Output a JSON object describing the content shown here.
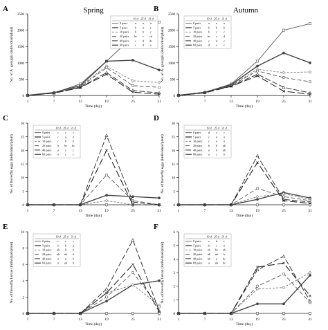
{
  "figure": {
    "column_titles": [
      "Spring",
      "Autumn"
    ]
  },
  "chart_data": [
    {
      "panel": "A",
      "type": "line",
      "season": "Spring",
      "ylabel": "No. of A. gossypii (individual/plant)",
      "xlabel": "Time (day)",
      "x": [
        1,
        7,
        13,
        19,
        25,
        31
      ],
      "ylim": [
        0,
        2500
      ],
      "yticks": [
        0,
        500,
        1000,
        1500,
        2000,
        2500
      ],
      "series": [
        {
          "name": "0 pairs",
          "values": [
            5,
            80,
            350,
            1050,
            1800,
            2250
          ]
        },
        {
          "name": "5 pairs",
          "values": [
            5,
            90,
            300,
            1050,
            1080,
            780
          ]
        },
        {
          "name": "10 pairs",
          "values": [
            5,
            85,
            280,
            900,
            450,
            400
          ]
        },
        {
          "name": "20 pairs",
          "values": [
            5,
            80,
            260,
            850,
            300,
            250
          ]
        },
        {
          "name": "40 pairs",
          "values": [
            5,
            75,
            250,
            700,
            150,
            80
          ]
        },
        {
          "name": "60 pairs",
          "values": [
            5,
            70,
            240,
            650,
            100,
            40
          ]
        }
      ],
      "letter_table": {
        "headers": [
          "19 d",
          "25 d",
          "31 d"
        ],
        "rows": [
          [
            "0 pairs",
            "a",
            "a",
            "a"
          ],
          [
            "5 pairs",
            "b",
            "a",
            "c"
          ],
          [
            "10 pairs",
            "b",
            "b",
            "c"
          ],
          [
            "20 pairs",
            "bc",
            "c",
            "cd"
          ],
          [
            "40 pairs",
            "c",
            "d",
            "de"
          ],
          [
            "60 pairs",
            "c",
            "d",
            "e"
          ]
        ]
      }
    },
    {
      "panel": "B",
      "type": "line",
      "season": "Autumn",
      "ylabel": "No. of A. gossypii (individual/plant)",
      "xlabel": "Time (day)",
      "x": [
        1,
        7,
        13,
        19,
        25,
        31
      ],
      "ylim": [
        0,
        2500
      ],
      "yticks": [
        0,
        500,
        1000,
        1500,
        2000,
        2500
      ],
      "series": [
        {
          "name": "0 pairs",
          "values": [
            5,
            100,
            350,
            1050,
            2000,
            2200
          ]
        },
        {
          "name": "5 pairs",
          "values": [
            5,
            100,
            330,
            900,
            1300,
            1000
          ]
        },
        {
          "name": "10 pairs",
          "values": [
            5,
            95,
            310,
            800,
            700,
            720
          ]
        },
        {
          "name": "20 pairs",
          "values": [
            5,
            90,
            300,
            750,
            550,
            420
          ]
        },
        {
          "name": "40 pairs",
          "values": [
            5,
            85,
            290,
            650,
            250,
            80
          ]
        },
        {
          "name": "60 pairs",
          "values": [
            5,
            80,
            280,
            600,
            130,
            40
          ]
        }
      ],
      "letter_table": {
        "headers": [
          "19 d",
          "25 d",
          "31 d"
        ],
        "rows": [
          [
            "0 pairs",
            "a",
            "a",
            "a"
          ],
          [
            "5 pairs",
            "b",
            "b",
            "b"
          ],
          [
            "10 pairs",
            "b",
            "c",
            "c"
          ],
          [
            "20 pairs",
            "bc",
            "c",
            "d"
          ],
          [
            "40 pairs",
            "c",
            "d",
            "e"
          ],
          [
            "60 pairs",
            "d",
            "e",
            "e"
          ]
        ]
      }
    },
    {
      "panel": "C",
      "type": "line",
      "season": "Spring",
      "ylabel": "No. of hoverfly eggs (individual/plant)",
      "xlabel": "Time (day)",
      "x": [
        1,
        7,
        13,
        19,
        25,
        31
      ],
      "ylim": [
        0,
        30
      ],
      "yticks": [
        0,
        5,
        10,
        15,
        20,
        25,
        30
      ],
      "series": [
        {
          "name": "0 pairs",
          "values": [
            0,
            0,
            0,
            0,
            0,
            0
          ]
        },
        {
          "name": "5 pairs",
          "values": [
            0,
            0,
            0,
            3.5,
            3.0,
            2.5
          ]
        },
        {
          "name": "10 pairs",
          "values": [
            0,
            0,
            0,
            1.5,
            0,
            0
          ]
        },
        {
          "name": "20 pairs",
          "values": [
            0,
            0,
            0,
            11,
            1.5,
            0
          ]
        },
        {
          "name": "40 pairs",
          "values": [
            0,
            0,
            0,
            25.5,
            1.0,
            0
          ]
        },
        {
          "name": "60 pairs",
          "values": [
            0,
            0,
            0,
            20,
            0,
            0
          ]
        }
      ],
      "letter_table": {
        "headers": [
          "19 d",
          "25 d",
          "31 d"
        ],
        "rows": [
          [
            "0 pairs",
            "c",
            "c",
            "c"
          ],
          [
            "5 pairs",
            "c",
            "a",
            "a"
          ],
          [
            "10 pairs",
            "c",
            "b",
            "b"
          ],
          [
            "20 pairs",
            "b",
            "bc",
            "bc"
          ],
          [
            "40 pairs",
            "a",
            "c",
            "c"
          ],
          [
            "60 pairs",
            "a",
            "c",
            "c"
          ]
        ]
      }
    },
    {
      "panel": "D",
      "type": "line",
      "season": "Autumn",
      "ylabel": "No. of hoverfly eggs (individual/plant)",
      "xlabel": "Time (day)",
      "x": [
        1,
        7,
        13,
        19,
        25,
        31
      ],
      "ylim": [
        0,
        30
      ],
      "yticks": [
        0,
        5,
        10,
        15,
        20,
        25,
        30
      ],
      "series": [
        {
          "name": "0 pairs",
          "values": [
            0,
            0,
            0,
            0,
            0,
            0
          ]
        },
        {
          "name": "5 pairs",
          "values": [
            0,
            0,
            0,
            2,
            4.5,
            2.5
          ]
        },
        {
          "name": "10 pairs",
          "values": [
            0,
            0,
            0,
            3,
            4,
            2
          ]
        },
        {
          "name": "20 pairs",
          "values": [
            0,
            0,
            0,
            6,
            3,
            1.5
          ]
        },
        {
          "name": "40 pairs",
          "values": [
            0,
            0,
            0,
            18,
            2,
            1
          ]
        },
        {
          "name": "60 pairs",
          "values": [
            0,
            0,
            0,
            15.5,
            1.5,
            0.5
          ]
        }
      ],
      "letter_table": {
        "headers": [
          "19 d",
          "25 d",
          "31 d"
        ],
        "rows": [
          [
            "0 pairs",
            "d",
            "c",
            "c"
          ],
          [
            "5 pairs",
            "c",
            "a",
            "a"
          ],
          [
            "10 pairs",
            "c",
            "a",
            "a"
          ],
          [
            "20 pairs",
            "b",
            "b",
            "ab"
          ],
          [
            "40 pairs",
            "a",
            "b",
            "ab"
          ],
          [
            "60 pairs",
            "a",
            "c",
            "b"
          ]
        ]
      }
    },
    {
      "panel": "E",
      "type": "line",
      "season": "Spring",
      "ylabel": "No. of hoverfly larvae (individual/plant)",
      "xlabel": "Time (day)",
      "x": [
        1,
        7,
        13,
        19,
        25,
        31
      ],
      "ylim": [
        0,
        10
      ],
      "yticks": [
        0,
        2,
        4,
        6,
        8,
        10
      ],
      "series": [
        {
          "name": "0 pairs",
          "values": [
            0,
            0,
            0,
            0,
            0,
            0
          ]
        },
        {
          "name": "5 pairs",
          "values": [
            0,
            0,
            0,
            1.5,
            3.5,
            4.0
          ]
        },
        {
          "name": "10 pairs",
          "values": [
            0,
            0,
            0,
            2.5,
            3.5,
            1.0
          ]
        },
        {
          "name": "20 pairs",
          "values": [
            0,
            0,
            0,
            2.0,
            5.0,
            0.8
          ]
        },
        {
          "name": "40 pairs",
          "values": [
            0,
            0,
            0,
            3.0,
            9.0,
            0.3
          ]
        },
        {
          "name": "60 pairs",
          "values": [
            0,
            0,
            0,
            2.5,
            6.0,
            0.2
          ]
        }
      ],
      "letter_table": {
        "headers": [
          "19 d",
          "25 d",
          "31 d"
        ],
        "rows": [
          [
            "0 pairs",
            "c",
            "c",
            "c"
          ],
          [
            "5 pairs",
            "b",
            "b",
            "a"
          ],
          [
            "10 pairs",
            "ab",
            "b",
            "b"
          ],
          [
            "20 pairs",
            "ab",
            "ab",
            "b"
          ],
          [
            "40 pairs",
            "a",
            "a",
            "b"
          ],
          [
            "60 pairs",
            "a",
            "ab",
            "b"
          ]
        ]
      }
    },
    {
      "panel": "F",
      "type": "line",
      "season": "Autumn",
      "ylabel": "No. of hoverfly larvae (individual/plant)",
      "xlabel": "Time (day)",
      "x": [
        1,
        7,
        13,
        19,
        25,
        31
      ],
      "ylim": [
        0,
        6
      ],
      "yticks": [
        0,
        1,
        2,
        3,
        4,
        5,
        6
      ],
      "series": [
        {
          "name": "0 pairs",
          "values": [
            0,
            0,
            0,
            0,
            0,
            0
          ]
        },
        {
          "name": "5 pairs",
          "values": [
            0,
            0,
            0,
            0.7,
            0.7,
            2.8
          ]
        },
        {
          "name": "10 pairs",
          "values": [
            0,
            0,
            0,
            1.8,
            1.9,
            3.0
          ]
        },
        {
          "name": "20 pairs",
          "values": [
            0,
            0,
            0,
            2.0,
            2.9,
            0.8
          ]
        },
        {
          "name": "40 pairs",
          "values": [
            0,
            0,
            0,
            3.2,
            4.2,
            0.9
          ]
        },
        {
          "name": "60 pairs",
          "values": [
            0,
            0,
            0,
            3.4,
            3.7,
            1.3
          ]
        }
      ],
      "letter_table": {
        "headers": [
          "19 d",
          "25 d",
          "31 d"
        ],
        "rows": [
          [
            "0 pairs",
            "c",
            "d",
            "c"
          ],
          [
            "5 pairs",
            "b",
            "c",
            "a"
          ],
          [
            "10 pairs",
            "ab",
            "bc",
            "ab"
          ],
          [
            "20 pairs",
            "ab",
            "ab",
            "b"
          ],
          [
            "40 pairs",
            "ab",
            "a",
            "bc"
          ],
          [
            "60 pairs",
            "a",
            "ab",
            "bc"
          ]
        ]
      }
    }
  ]
}
